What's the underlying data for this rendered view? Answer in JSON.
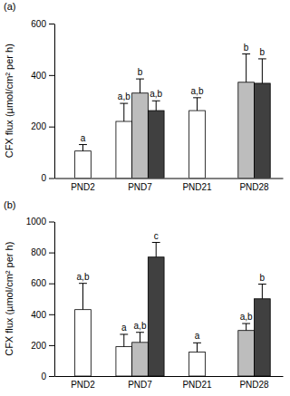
{
  "chart_data": [
    {
      "type": "bar",
      "title": "(a)",
      "y_label": "CFX flux (µmol/cm² per h)",
      "categories": [
        "PND2",
        "PND7",
        "PND21",
        "PND28"
      ],
      "ylim": [
        0,
        600
      ],
      "yticks": [
        0,
        200,
        400,
        600
      ],
      "series": [
        {
          "color": "#ffffff",
          "values": [
            105,
            220,
            262,
            null
          ],
          "errors": [
            25,
            70,
            50,
            null
          ],
          "annotations": [
            "a",
            "a,b",
            "a,b",
            null
          ]
        },
        {
          "color": "#bdbdbd",
          "values": [
            null,
            330,
            null,
            372
          ],
          "errors": [
            null,
            55,
            null,
            110
          ],
          "annotations": [
            null,
            "b",
            null,
            "b"
          ]
        },
        {
          "color": "#404040",
          "values": [
            null,
            262,
            null,
            368
          ],
          "errors": [
            null,
            38,
            null,
            95
          ],
          "annotations": [
            null,
            "a,b",
            null,
            "b"
          ]
        }
      ]
    },
    {
      "type": "bar",
      "title": "(b)",
      "y_label": "CFX flux (µmol/cm² per h)",
      "categories": [
        "PND2",
        "PND7",
        "PND21",
        "PND28"
      ],
      "ylim": [
        0,
        1000
      ],
      "yticks": [
        0,
        200,
        400,
        600,
        800,
        1000
      ],
      "series": [
        {
          "color": "#ffffff",
          "values": [
            430,
            190,
            155,
            null
          ],
          "errors": [
            170,
            80,
            60,
            null
          ],
          "annotations": [
            "a,b",
            "a",
            "a",
            null
          ]
        },
        {
          "color": "#bdbdbd",
          "values": [
            null,
            218,
            null,
            295
          ],
          "errors": [
            null,
            65,
            null,
            45
          ],
          "annotations": [
            null,
            "a,b",
            null,
            "a,b"
          ]
        },
        {
          "color": "#404040",
          "values": [
            null,
            770,
            null,
            500
          ],
          "errors": [
            null,
            95,
            null,
            95
          ],
          "annotations": [
            null,
            "c",
            null,
            "b"
          ]
        }
      ]
    }
  ]
}
